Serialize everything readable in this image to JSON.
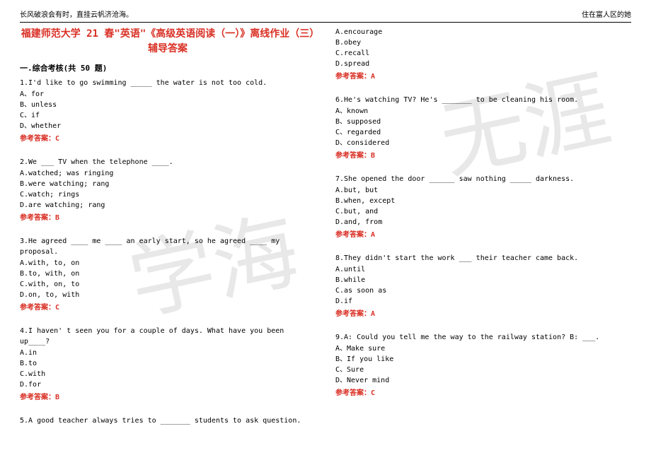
{
  "header": {
    "left": "长风破浪会有时，直挂云帆济沧海。",
    "right": "住在富人区的她"
  },
  "title": "福建师范大学 21 春\"英语\"《高级英语阅读（一）》离线作业（三）辅导答案",
  "section": "一.综合考核(共 50 题)",
  "watermark": {
    "text1": "学海",
    "text2": "无涯"
  },
  "colors": {
    "red": "#d93025",
    "text": "#000000",
    "watermark": "#e8e8e8"
  },
  "left_questions": [
    {
      "text": "1.I'd like to go swimming _____ the water is not too cold.",
      "opts": [
        "A、for",
        "B、unless",
        "C、if",
        "D、whether"
      ],
      "answer": "参考答案：C"
    },
    {
      "text": "2.We ___ TV when the telephone ____.",
      "opts": [
        "A.watched; was ringing",
        "B.were watching; rang",
        "C.watch; rings",
        "D.are watching; rang"
      ],
      "answer": "参考答案：B"
    },
    {
      "text": "3.He agreed ____ me ____ an early start, so he agreed ____ my proposal.",
      "opts": [
        "A.with, to, on",
        "B.to, with, on",
        "C.with, on, to",
        "D.on, to, with"
      ],
      "answer": "参考答案：C"
    },
    {
      "text": "4.I haven' t seen you for a couple of days. What have you been up____?",
      "opts": [
        "A.in",
        "B.to",
        "C.with",
        "D.for"
      ],
      "answer": "参考答案：B"
    },
    {
      "text": "5.A good teacher always tries to _______ students to ask question.",
      "opts": [],
      "answer": ""
    }
  ],
  "right_questions": [
    {
      "text": "",
      "opts": [
        "A.encourage",
        "B.obey",
        "C.recall",
        "D.spread"
      ],
      "answer": "参考答案：A"
    },
    {
      "text": "6.He's watching TV? He's _______ to be cleaning his room.",
      "opts": [
        "A、known",
        "B、supposed",
        "C、regarded",
        "D、considered"
      ],
      "answer": "参考答案：B"
    },
    {
      "text": "7.She opened the door ______ saw nothing _____ darkness.",
      "opts": [
        "A.but, but",
        "B.when, except",
        "C.but, and",
        "D.and, from"
      ],
      "answer": "参考答案：A"
    },
    {
      "text": "8.They didn't start the work ___ their teacher came back.",
      "opts": [
        "A.until",
        "B.while",
        "C.as soon as",
        "D.if"
      ],
      "answer": "参考答案：A"
    },
    {
      "text": "9.A: Could you tell me the way to the railway station? B: ___.",
      "opts": [
        "A、Make sure",
        "B、If you like",
        "C、Sure",
        "D、Never mind"
      ],
      "answer": "参考答案：C"
    }
  ]
}
